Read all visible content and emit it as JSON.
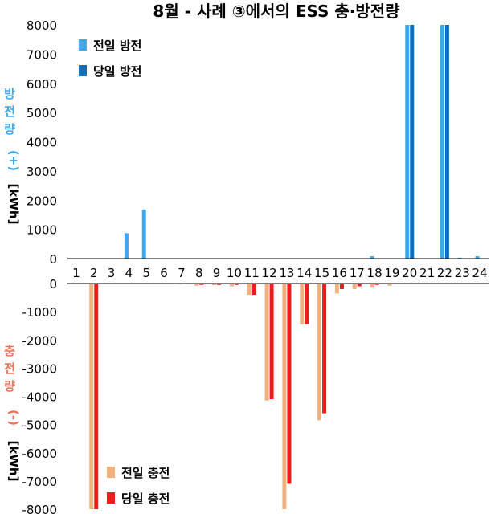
{
  "chart_data": {
    "type": "bar",
    "title": "8월 - 사례 ③에서의 ESS 충·방전량",
    "categories": [
      "1",
      "2",
      "3",
      "4",
      "5",
      "6",
      "7",
      "8",
      "9",
      "10",
      "11",
      "12",
      "13",
      "14",
      "15",
      "16",
      "17",
      "18",
      "19",
      "20",
      "21",
      "22",
      "23",
      "24"
    ],
    "top_panel": {
      "ylabel_main": "방전량",
      "ylabel_sign": "(+)",
      "ylabel_unit": "[kWh]",
      "ylim": [
        0,
        8000
      ],
      "yticks": [
        "0",
        "1000",
        "2000",
        "3000",
        "4000",
        "5000",
        "6000",
        "7000",
        "8000"
      ],
      "series": [
        {
          "name": "전일 방전",
          "color": "#3da9ec",
          "values": [
            0,
            0,
            0,
            870,
            1680,
            0,
            0,
            0,
            0,
            0,
            0,
            0,
            0,
            0,
            0,
            0,
            0,
            80,
            0,
            8000,
            0,
            8000,
            30,
            80
          ]
        },
        {
          "name": "당일 방전",
          "color": "#0a6fbf",
          "values": [
            0,
            0,
            0,
            0,
            0,
            0,
            0,
            0,
            0,
            0,
            0,
            0,
            0,
            0,
            0,
            0,
            0,
            0,
            0,
            8000,
            0,
            8000,
            0,
            0
          ]
        }
      ]
    },
    "bottom_panel": {
      "ylabel_main": "충전량",
      "ylabel_sign": "(-)",
      "ylabel_unit": "[kWh]",
      "ylim": [
        -8000,
        0
      ],
      "yticks": [
        "0",
        "-1000",
        "-2000",
        "-3000",
        "-4000",
        "-5000",
        "-6000",
        "-7000",
        "-8000"
      ],
      "series": [
        {
          "name": "전일 충전",
          "color": "#f2b07e",
          "values": [
            0,
            -8000,
            0,
            0,
            0,
            0,
            -30,
            -80,
            -60,
            -100,
            -400,
            -4150,
            -8000,
            -1450,
            -4850,
            -350,
            -200,
            -120,
            -80,
            0,
            0,
            0,
            0,
            0
          ]
        },
        {
          "name": "당일 충전",
          "color": "#ee1c1c",
          "values": [
            0,
            -8000,
            0,
            0,
            0,
            0,
            0,
            -50,
            -50,
            -50,
            -400,
            -4100,
            -7100,
            -1450,
            -4600,
            -200,
            -100,
            -50,
            0,
            0,
            0,
            0,
            0,
            0
          ]
        }
      ]
    },
    "colors": {
      "top_label": "#3da9ec",
      "bottom_label": "#f0715a",
      "axis": "#000000"
    }
  }
}
